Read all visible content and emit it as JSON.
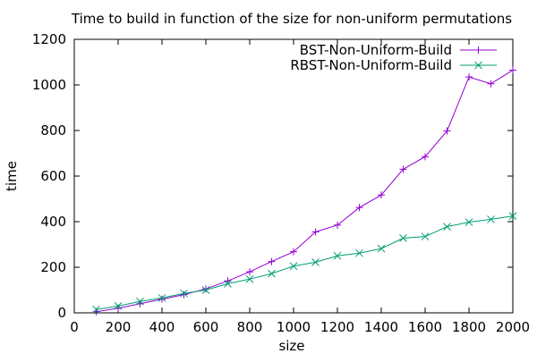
{
  "chart_data": {
    "type": "line",
    "title": "Time to build in function of the size for non-uniform permutations",
    "xlabel": "size",
    "ylabel": "time",
    "xlim": [
      0,
      2000
    ],
    "ylim": [
      0,
      1200
    ],
    "xticks": [
      0,
      200,
      400,
      600,
      800,
      1000,
      1200,
      1400,
      1600,
      1800,
      2000
    ],
    "yticks": [
      0,
      200,
      400,
      600,
      800,
      1000,
      1200
    ],
    "grid": false,
    "legend_position": "top-right",
    "x": [
      100,
      200,
      300,
      400,
      500,
      600,
      700,
      800,
      900,
      1000,
      1100,
      1200,
      1300,
      1400,
      1500,
      1600,
      1700,
      1800,
      1900,
      2000
    ],
    "series": [
      {
        "name": "BST-Non-Uniform-Build",
        "color": "#9400d3",
        "marker": "plus",
        "values": [
          5,
          20,
          40,
          60,
          80,
          105,
          140,
          180,
          225,
          268,
          355,
          385,
          462,
          517,
          630,
          685,
          798,
          1035,
          1005,
          1065
        ]
      },
      {
        "name": "RBST-Non-Uniform-Build",
        "color": "#009e73",
        "marker": "cross",
        "values": [
          15,
          30,
          50,
          65,
          85,
          100,
          128,
          148,
          172,
          205,
          222,
          250,
          262,
          282,
          328,
          335,
          378,
          398,
          410,
          425
        ]
      }
    ]
  }
}
